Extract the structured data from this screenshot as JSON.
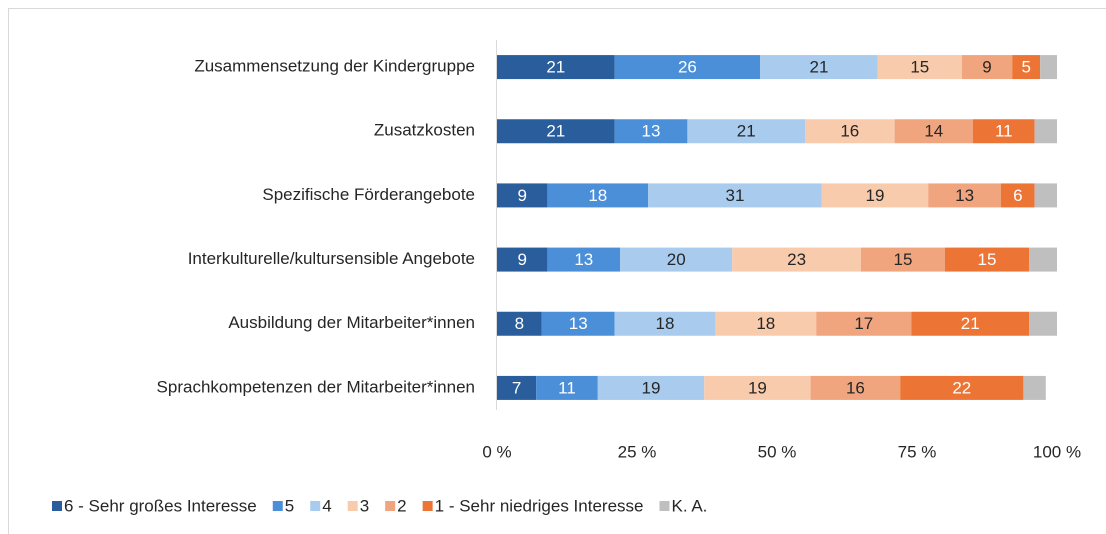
{
  "chart_data": {
    "type": "stacked_barh",
    "categories": [
      "Zusammensetzung der Kindergruppe",
      "Zusatzkosten",
      "Spezifische Förderangebote",
      "Interkulturelle/kultursensible Angebote",
      "Ausbildung der Mitarbeiter*innen",
      "Sprachkompetenzen der Mitarbeiter*innen"
    ],
    "series": [
      {
        "name": "6 - Sehr großes Interesse",
        "color": "#2a5d9c",
        "label_color": "#ffffff",
        "values": [
          21,
          21,
          9,
          9,
          8,
          7
        ]
      },
      {
        "name": "5",
        "color": "#4a8fd8",
        "label_color": "#ffffff",
        "values": [
          26,
          13,
          18,
          13,
          13,
          11
        ]
      },
      {
        "name": "4",
        "color": "#a8cbee",
        "label_color": "#262626",
        "values": [
          21,
          21,
          31,
          20,
          18,
          19
        ]
      },
      {
        "name": "3",
        "color": "#f8cbad",
        "label_color": "#262626",
        "values": [
          15,
          16,
          19,
          23,
          18,
          19
        ]
      },
      {
        "name": "2",
        "color": "#f1a57e",
        "label_color": "#262626",
        "values": [
          9,
          14,
          13,
          15,
          17,
          16
        ]
      },
      {
        "name": "1 - Sehr niedriges Interesse",
        "color": "#ec7535",
        "label_color": "#ffffff",
        "values": [
          5,
          11,
          6,
          15,
          21,
          22
        ]
      },
      {
        "name": "K. A.",
        "color": "#bfbfbf",
        "show_labels": false,
        "values": [
          3,
          4,
          4,
          5,
          5,
          4
        ]
      }
    ],
    "xlim": [
      0,
      100
    ],
    "xticks": [
      {
        "value": 0,
        "label": "0 %"
      },
      {
        "value": 25,
        "label": "25 %"
      },
      {
        "value": 50,
        "label": "50 %"
      },
      {
        "value": 75,
        "label": "75 %"
      },
      {
        "value": 100,
        "label": "100 %"
      }
    ],
    "legend": "bottom"
  }
}
